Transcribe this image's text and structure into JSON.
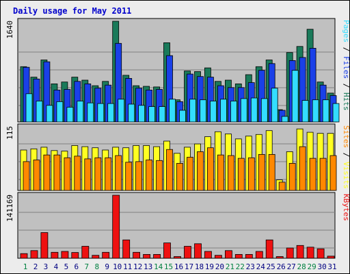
{
  "title": "Daily usage for May 2011",
  "colors": {
    "hits": "#1a7a5a",
    "files": "#1a40e8",
    "pages": "#33ddff",
    "visits": "#ffff22",
    "sites": "#ff8800",
    "kbytes": "#ee1111",
    "plot_bg": "#c0c0c0",
    "grid": "#808080",
    "weekend_label": "#008040",
    "weekday_label": "#000080"
  },
  "chart_data": [
    {
      "type": "bar",
      "title": "Daily usage for May 2011",
      "ylabel": "Pages / Files / Hits",
      "ymax_label": "1640",
      "ylim": [
        0,
        1640
      ],
      "categories": [
        "1",
        "2",
        "3",
        "4",
        "5",
        "6",
        "7",
        "8",
        "9",
        "10",
        "11",
        "12",
        "13",
        "14",
        "15",
        "16",
        "17",
        "18",
        "19",
        "20",
        "21",
        "22",
        "23",
        "24",
        "25",
        "26",
        "27",
        "28",
        "29",
        "30",
        "31"
      ],
      "series": [
        {
          "name": "Hits",
          "values": [
            900,
            730,
            1010,
            620,
            650,
            730,
            680,
            590,
            660,
            1640,
            760,
            590,
            580,
            570,
            1290,
            360,
            830,
            820,
            880,
            660,
            680,
            620,
            770,
            900,
            1010,
            200,
            1130,
            1230,
            1510,
            650,
            470
          ]
        },
        {
          "name": "Files",
          "values": [
            890,
            700,
            980,
            520,
            530,
            660,
            620,
            550,
            600,
            1280,
            710,
            550,
            520,
            530,
            1080,
            330,
            780,
            740,
            730,
            590,
            560,
            560,
            640,
            840,
            950,
            190,
            1000,
            1050,
            1200,
            600,
            430
          ]
        },
        {
          "name": "Pages",
          "values": [
            460,
            340,
            270,
            330,
            240,
            340,
            310,
            300,
            300,
            370,
            290,
            270,
            250,
            250,
            370,
            190,
            370,
            360,
            340,
            370,
            340,
            380,
            390,
            380,
            550,
            90,
            840,
            350,
            360,
            360,
            300
          ]
        }
      ]
    },
    {
      "type": "bar",
      "ylabel": "Sites / Visits",
      "ymax_label": "115",
      "ylim": [
        0,
        115
      ],
      "categories": [
        "1",
        "2",
        "3",
        "4",
        "5",
        "6",
        "7",
        "8",
        "9",
        "10",
        "11",
        "12",
        "13",
        "14",
        "15",
        "16",
        "17",
        "18",
        "19",
        "20",
        "21",
        "22",
        "23",
        "24",
        "25",
        "26",
        "27",
        "28",
        "29",
        "30",
        "31"
      ],
      "series": [
        {
          "name": "Visits",
          "values": [
            73,
            75,
            78,
            72,
            71,
            81,
            79,
            77,
            73,
            78,
            77,
            81,
            81,
            79,
            89,
            67,
            78,
            84,
            97,
            106,
            102,
            93,
            98,
            101,
            108,
            19,
            70,
            111,
            105,
            103,
            103
          ]
        },
        {
          "name": "Sites",
          "values": [
            52,
            55,
            64,
            64,
            59,
            62,
            57,
            59,
            59,
            63,
            51,
            52,
            55,
            54,
            74,
            49,
            60,
            70,
            77,
            64,
            63,
            58,
            59,
            65,
            65,
            15,
            49,
            79,
            58,
            58,
            63
          ]
        }
      ]
    },
    {
      "type": "bar",
      "ylabel": "KBytes",
      "ymax_label": "141169",
      "ylim": [
        0,
        141169
      ],
      "categories": [
        "1",
        "2",
        "3",
        "4",
        "5",
        "6",
        "7",
        "8",
        "9",
        "10",
        "11",
        "12",
        "13",
        "14",
        "15",
        "16",
        "17",
        "18",
        "19",
        "20",
        "21",
        "22",
        "23",
        "24",
        "25",
        "26",
        "27",
        "28",
        "29",
        "30",
        "31"
      ],
      "series": [
        {
          "name": "KBytes",
          "values": [
            10500,
            17200,
            57500,
            13400,
            15300,
            12900,
            26800,
            6600,
            13400,
            141169,
            41100,
            13400,
            8600,
            8600,
            34400,
            3800,
            26800,
            32500,
            15300,
            6600,
            17200,
            8600,
            8600,
            15300,
            41100,
            3800,
            23000,
            28700,
            24900,
            21100,
            4800
          ]
        }
      ]
    }
  ]
}
